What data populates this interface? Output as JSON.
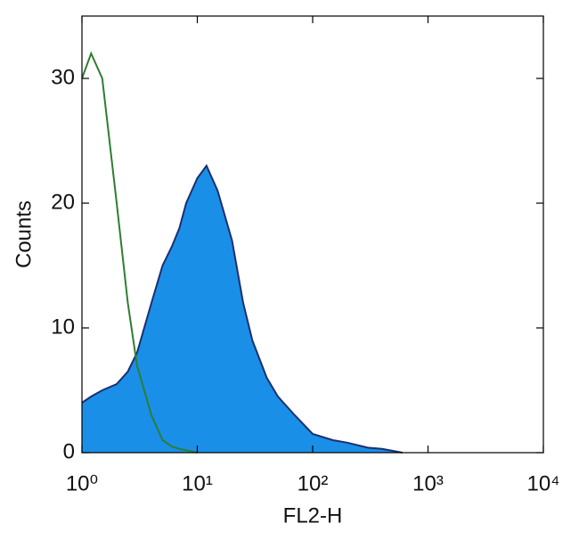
{
  "chart_data": {
    "type": "histogram-line",
    "xlabel": "FL2-H",
    "ylabel": "Counts",
    "xscale": "log",
    "xlim": [
      1,
      10000
    ],
    "ylim": [
      0,
      35
    ],
    "xticks": [
      {
        "value": 1,
        "label": "10⁰"
      },
      {
        "value": 10,
        "label": "10¹"
      },
      {
        "value": 100,
        "label": "10²"
      },
      {
        "value": 1000,
        "label": "10³"
      },
      {
        "value": 10000,
        "label": "10⁴"
      }
    ],
    "yticks": [
      0,
      10,
      20,
      30
    ],
    "x": [
      1,
      1.2,
      1.5,
      2,
      2.5,
      3,
      4,
      5,
      6,
      7,
      8,
      10,
      12,
      15,
      20,
      25,
      30,
      40,
      50,
      70,
      100,
      150,
      200,
      300,
      400,
      600
    ],
    "series": [
      {
        "color": "#1a8fe8",
        "edgecolor": "#1c2f6e",
        "fill": true,
        "values": [
          4,
          4.5,
          5,
          5.5,
          6.5,
          8,
          12,
          15,
          16.5,
          18,
          20,
          22,
          23,
          21,
          17,
          12,
          9,
          6,
          4.5,
          3,
          1.5,
          1,
          0.8,
          0.4,
          0.3,
          0
        ]
      },
      {
        "color": "#2e7d32",
        "fill": false,
        "values": [
          30,
          32,
          30,
          20,
          12,
          7,
          3,
          1,
          0.5,
          0.3,
          0.2,
          0,
          null,
          null,
          null,
          null,
          null,
          null,
          null,
          null,
          null,
          null,
          null,
          null,
          null,
          null
        ]
      }
    ]
  }
}
